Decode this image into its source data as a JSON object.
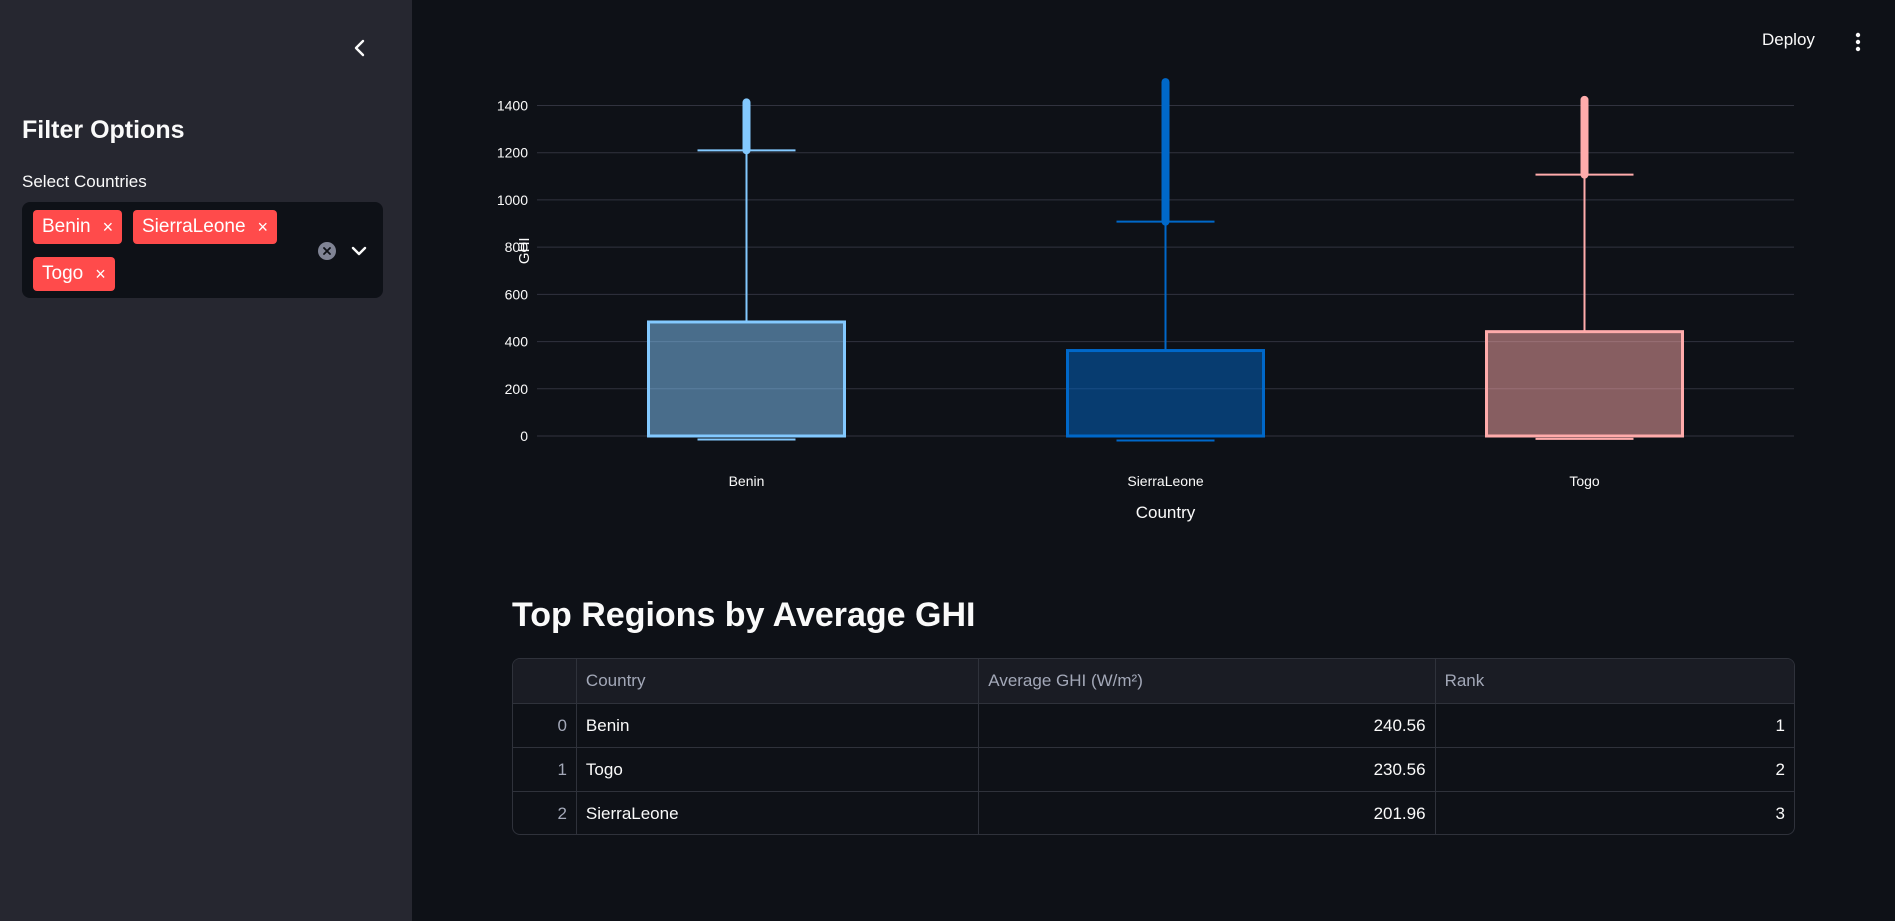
{
  "sidebar": {
    "title": "Filter Options",
    "select_label": "Select Countries",
    "selected": [
      {
        "label": "Benin",
        "remove": "×"
      },
      {
        "label": "SierraLeone",
        "remove": "×"
      },
      {
        "label": "Togo",
        "remove": "×"
      }
    ],
    "tag_color": "#ff4b4b",
    "icons": [
      "chevron-left-icon",
      "clear-icon",
      "chevron-down-icon"
    ]
  },
  "header": {
    "deploy_label": "Deploy",
    "menu_icon": "kebab-menu-icon"
  },
  "chart_data": {
    "type": "box",
    "xlabel": "Country",
    "ylabel": "GHI",
    "ylim": [
      0,
      1500
    ],
    "yticks": [
      0,
      200,
      400,
      600,
      800,
      1000,
      1200,
      1400
    ],
    "grid": true,
    "categories": [
      "Benin",
      "SierraLeone",
      "Togo"
    ],
    "series": [
      {
        "category": "Benin",
        "min": -15,
        "q1": 0,
        "median": 0,
        "q3": 483,
        "upper_fence": 1210,
        "max_outlier": 1413,
        "color": "#83c9ff"
      },
      {
        "category": "SierraLeone",
        "min": -19,
        "q1": 0,
        "median": 0,
        "q3": 362,
        "upper_fence": 908,
        "max_outlier": 1499,
        "color": "#0068c9"
      },
      {
        "category": "Togo",
        "min": -12,
        "q1": 0,
        "median": 0,
        "q3": 442,
        "upper_fence": 1107,
        "max_outlier": 1424,
        "color": "#ffabab"
      }
    ]
  },
  "table": {
    "title": "Top Regions by Average GHI",
    "columns": [
      "",
      "Country",
      "Average GHI (W/m²)",
      "Rank"
    ],
    "rows": [
      {
        "index": "0",
        "country": "Benin",
        "ghi": "240.56",
        "rank": "1"
      },
      {
        "index": "1",
        "country": "Togo",
        "ghi": "230.56",
        "rank": "2"
      },
      {
        "index": "2",
        "country": "SierraLeone",
        "ghi": "201.96",
        "rank": "3"
      }
    ]
  }
}
